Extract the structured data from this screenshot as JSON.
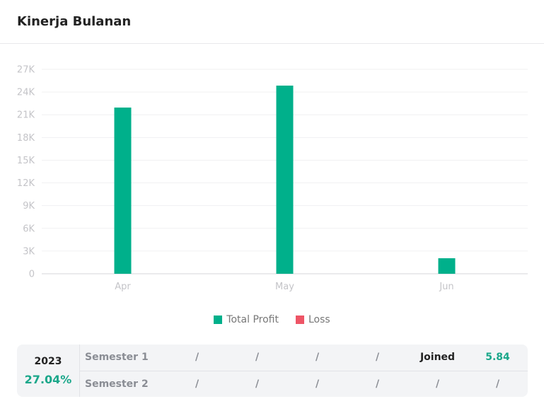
{
  "header": {
    "title": "Kinerja Bulanan"
  },
  "colors": {
    "profit": "#00b08b",
    "loss": "#ee5566",
    "accent": "#1aa78a"
  },
  "chart_data": {
    "type": "bar",
    "categories": [
      "Apr",
      "May",
      "Jun"
    ],
    "series": [
      {
        "name": "Total Profit",
        "values": [
          21950,
          24850,
          2050
        ]
      },
      {
        "name": "Loss",
        "values": [
          0,
          0,
          0
        ]
      }
    ],
    "ylim": [
      0,
      27000
    ],
    "y_ticks": [
      "0",
      "3K",
      "6K",
      "9K",
      "12K",
      "15K",
      "18K",
      "21K",
      "24K",
      "27K"
    ],
    "grid": true,
    "legend_position": "bottom"
  },
  "summary": {
    "year": "2023",
    "percent": "27.04%",
    "rows": [
      {
        "label": "Semester 1",
        "cells": [
          "/",
          "/",
          "/",
          "/"
        ],
        "joined_label": "Joined",
        "joined_value": "5.84"
      },
      {
        "label": "Semester 2",
        "cells": [
          "/",
          "/",
          "/",
          "/",
          "/",
          "/"
        ]
      }
    ]
  }
}
